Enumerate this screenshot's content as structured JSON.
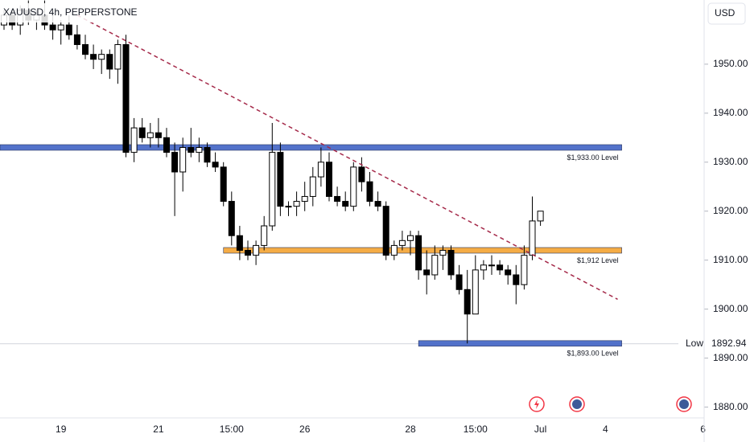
{
  "chart_data": {
    "type": "candlestick",
    "title": "XAUUSD, 4h, PEPPERSTONE",
    "currency": "USD",
    "categories": [
      null,
      null,
      null,
      null,
      null,
      null,
      null,
      "19",
      null,
      null,
      null,
      null,
      null,
      null,
      null,
      null,
      null,
      null,
      null,
      "21",
      null,
      null,
      null,
      null,
      null,
      null,
      null,
      null,
      "15:00",
      null,
      null,
      null,
      null,
      null,
      null,
      null,
      null,
      "26",
      null,
      null,
      null,
      null,
      null,
      null,
      null,
      null,
      null,
      null,
      null,
      null,
      "28",
      null,
      null,
      null,
      null,
      null,
      null,
      null,
      "15:00",
      null,
      null,
      null,
      null,
      null,
      null,
      null,
      "Jul",
      null,
      null,
      null,
      null,
      null,
      null,
      null,
      "4",
      null,
      null,
      null,
      null,
      null,
      null,
      null,
      null,
      null,
      null,
      null,
      "6"
    ],
    "candles": [
      [
        1958,
        1961,
        1957,
        1960
      ],
      [
        1960,
        1961,
        1957,
        1958
      ],
      [
        1958,
        1962,
        1956,
        1961
      ],
      [
        1961,
        1963,
        1958,
        1959
      ],
      [
        1959,
        1961,
        1957,
        1960
      ],
      [
        1960,
        1963,
        1957,
        1958
      ],
      [
        1958,
        1960,
        1955,
        1957
      ],
      [
        1957,
        1959,
        1954,
        1958
      ],
      [
        1958,
        1960,
        1955,
        1956
      ],
      [
        1956,
        1958,
        1953,
        1954
      ],
      [
        1954,
        1956,
        1951,
        1952
      ],
      [
        1952,
        1954,
        1949,
        1951
      ],
      [
        1951,
        1953,
        1948,
        1952
      ],
      [
        1952,
        1953,
        1947,
        1949
      ],
      [
        1949,
        1955,
        1946,
        1954
      ],
      [
        1954,
        1956,
        1931,
        1932
      ],
      [
        1932,
        1939,
        1930,
        1937
      ],
      [
        1937,
        1939,
        1934,
        1935
      ],
      [
        1935,
        1938,
        1933,
        1936
      ],
      [
        1936,
        1939,
        1933,
        1935
      ],
      [
        1935,
        1937,
        1931,
        1932
      ],
      [
        1932,
        1934,
        1919,
        1928
      ],
      [
        1928,
        1935,
        1924,
        1933
      ],
      [
        1933,
        1937,
        1931,
        1932
      ],
      [
        1932,
        1935,
        1930,
        1933
      ],
      [
        1933,
        1934,
        1929,
        1930
      ],
      [
        1930,
        1932,
        1928,
        1929
      ],
      [
        1929,
        1930,
        1921,
        1922
      ],
      [
        1922,
        1924,
        1913,
        1915
      ],
      [
        1915,
        1917,
        1910,
        1912
      ],
      [
        1912,
        1914,
        1910,
        1911
      ],
      [
        1911,
        1914,
        1909,
        1913
      ],
      [
        1913,
        1919,
        1912,
        1917
      ],
      [
        1917,
        1938,
        1916,
        1932
      ],
      [
        1932,
        1934,
        1919,
        1921
      ],
      [
        1921,
        1922,
        1919,
        1921
      ],
      [
        1921,
        1924,
        1919,
        1922
      ],
      [
        1922,
        1926,
        1920,
        1923
      ],
      [
        1923,
        1929,
        1921,
        1927
      ],
      [
        1927,
        1933,
        1925,
        1930
      ],
      [
        1930,
        1932,
        1922,
        1923
      ],
      [
        1923,
        1925,
        1921,
        1922
      ],
      [
        1922,
        1924,
        1920,
        1921
      ],
      [
        1921,
        1930,
        1920,
        1929
      ],
      [
        1929,
        1931,
        1924,
        1926
      ],
      [
        1926,
        1928,
        1921,
        1922
      ],
      [
        1922,
        1924,
        1920,
        1921
      ],
      [
        1921,
        1922,
        1910,
        1911
      ],
      [
        1911,
        1914,
        1910,
        1913
      ],
      [
        1913,
        1916,
        1912,
        1914
      ],
      [
        1914,
        1916,
        1911,
        1915
      ],
      [
        1915,
        1916,
        1906,
        1908
      ],
      [
        1908,
        1912,
        1903,
        1907
      ],
      [
        1907,
        1913,
        1906,
        1911
      ],
      [
        1911,
        1913,
        1908,
        1912
      ],
      [
        1912,
        1913,
        1906,
        1907
      ],
      [
        1907,
        1909,
        1903,
        1904
      ],
      [
        1904,
        1908,
        1893,
        1899
      ],
      [
        1899,
        1911,
        1899,
        1908
      ],
      [
        1908,
        1910,
        1906,
        1909
      ],
      [
        1909,
        1911,
        1907,
        1909
      ],
      [
        1909,
        1910,
        1907,
        1908
      ],
      [
        1908,
        1909,
        1905,
        1907
      ],
      [
        1907,
        1909,
        1901,
        1905
      ],
      [
        1905,
        1913,
        1904,
        1911
      ],
      [
        1911,
        1923,
        1910,
        1918
      ],
      [
        1918,
        1920,
        1917,
        1920
      ],
      null,
      null,
      null,
      null,
      null,
      null,
      null,
      null,
      null,
      null,
      null,
      null,
      null,
      null,
      null,
      null,
      null,
      null,
      null,
      null
    ],
    "up_color": "#ffffff",
    "down_color": "#000000",
    "ylim": [
      1877.8,
      1963.1
    ],
    "yticks": [
      {
        "value": 1880,
        "label": "1880.00"
      },
      {
        "value": 1890,
        "label": "1890.00"
      },
      {
        "value": 1900,
        "label": "1900.00"
      },
      {
        "value": 1910,
        "label": "1910.00"
      },
      {
        "value": 1920,
        "label": "1920.00"
      },
      {
        "value": 1930,
        "label": "1930.00"
      },
      {
        "value": 1940,
        "label": "1940.00"
      },
      {
        "value": 1950,
        "label": "1950.00"
      }
    ],
    "levels": [
      {
        "label": "$1,933.00 Level",
        "value": 1933,
        "start": 0,
        "end": 76,
        "color": "#4a6bc8"
      },
      {
        "label": "$1,912 Level",
        "value": 1912,
        "start": 27.5,
        "end": 76,
        "color": "#f5a83c"
      },
      {
        "label": "$1,893.00 Level",
        "value": 1893,
        "start": 51.5,
        "end": 76,
        "color": "#4a6bc8"
      }
    ],
    "trendline": {
      "start": [
        9,
        1960
      ],
      "end": [
        75.5,
        1902
      ],
      "color": "#a52a4a"
    },
    "low": {
      "label": "Low",
      "value": 1892.94
    }
  }
}
